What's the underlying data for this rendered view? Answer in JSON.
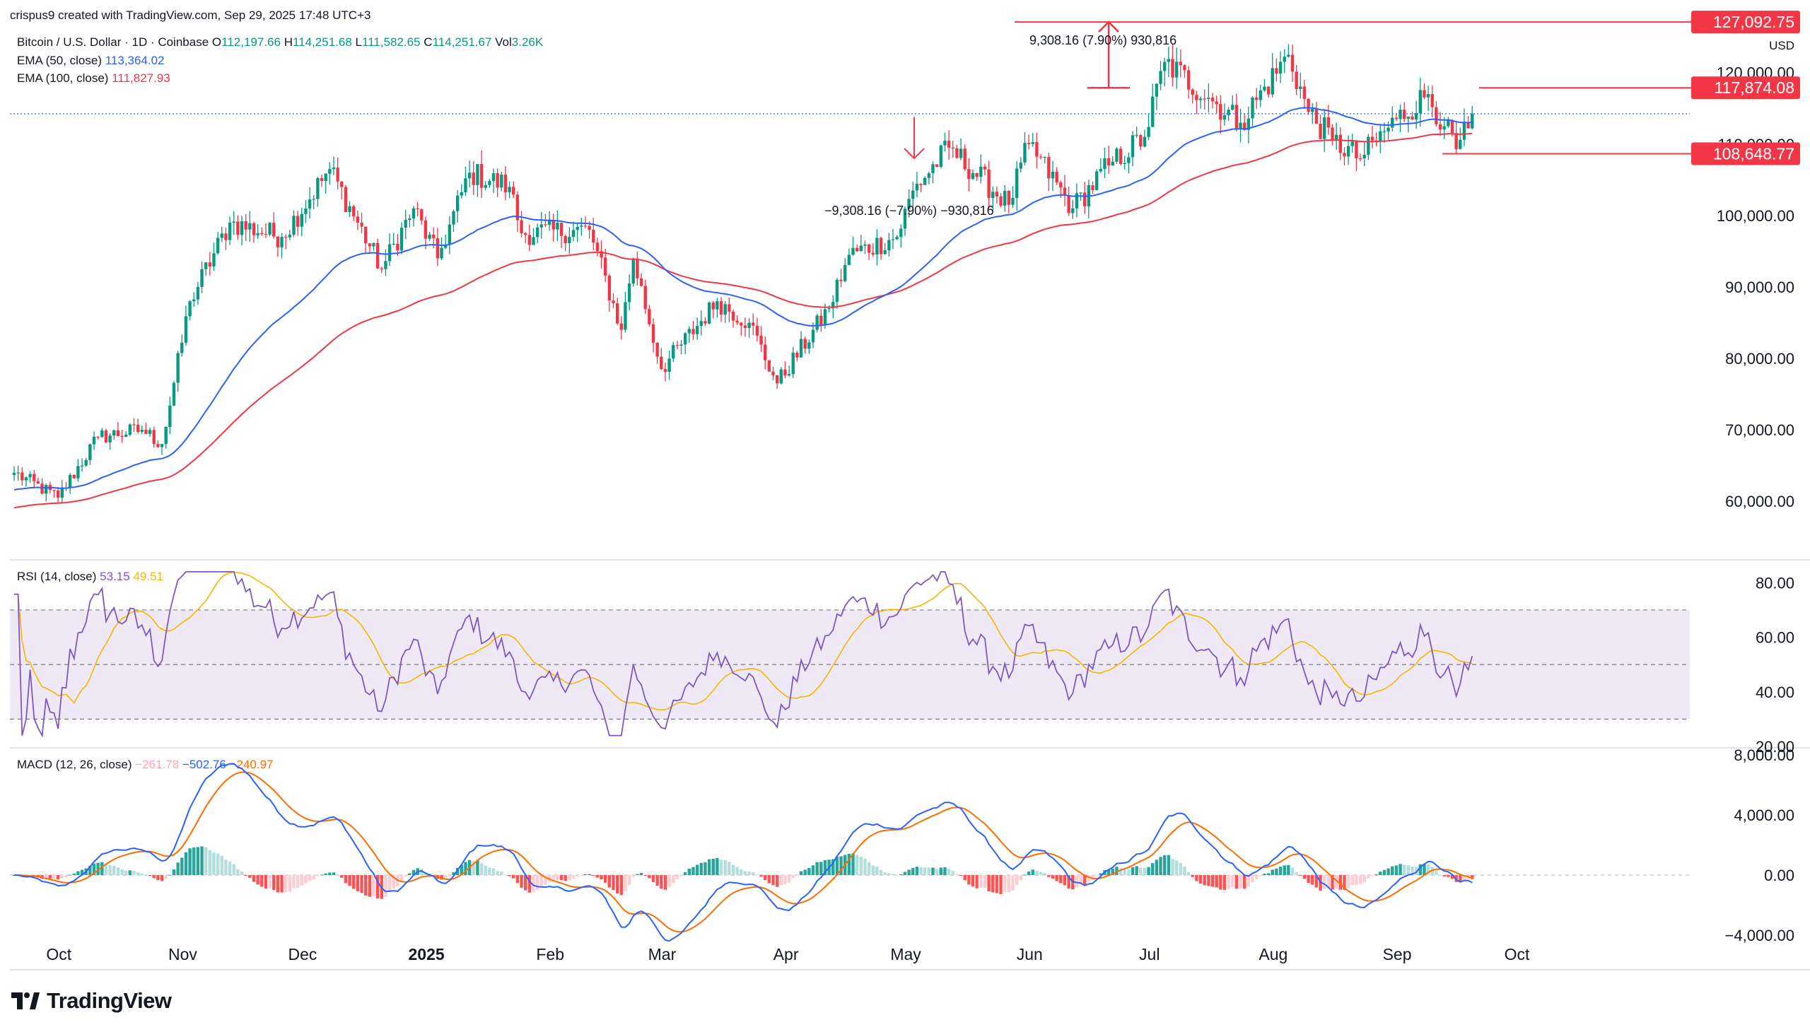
{
  "header": {
    "credit": "crispus9 created with TradingView.com, Sep 29, 2025 17:48 UTC+3",
    "symbol": "Bitcoin / U.S. Dollar · 1D · Coinbase",
    "o_label": "O",
    "o_value": "112,197.66",
    "h_label": "H",
    "h_value": "114,251.68",
    "l_label": "L",
    "l_value": "111,582.65",
    "c_label": "C",
    "c_value": "114,251.67",
    "vol_label": "Vol",
    "vol_value": "3.26K",
    "ema50_label": "EMA (50, close)",
    "ema50_value": "113,364.02",
    "ema100_label": "EMA (100, close)",
    "ema100_value": "111,827.93",
    "rsi_label": "RSI (14, close)",
    "rsi_value": "53.15",
    "rsi_ma_value": "49.51",
    "macd_label": "MACD (12, 26, close)",
    "macd_hist": "−261.78",
    "macd_value": "−502.76",
    "macd_signal": "−240.97"
  },
  "currency": "USD",
  "logo": "TradingView",
  "colors": {
    "up": "#089981",
    "down": "#f23645",
    "ema50": "#2962ff",
    "ema100": "#f23645",
    "rsi": "#7e57c2",
    "rsi_ma": "#f7b500",
    "macd": "#2962ff",
    "signal": "#ff6d00",
    "band": "#ede7f6"
  },
  "chart_data": [
    {
      "type": "candlestick",
      "title": "Bitcoin / U.S. Dollar · 1D · Coinbase",
      "x_ticks": [
        "Oct",
        "Nov",
        "Dec",
        "2025",
        "Feb",
        "Mar",
        "Apr",
        "May",
        "Jun",
        "Jul",
        "Aug",
        "Sep",
        "Oct"
      ],
      "y_ticks": [
        "60,000.00",
        "70,000.00",
        "80,000.00",
        "90,000.00",
        "100,000.00",
        "110,000.00",
        "120,000.00"
      ],
      "ylim": [
        52000,
        127000
      ],
      "price_labels": [
        "127,092.75",
        "117,874.08",
        "108,648.77"
      ],
      "levels": [
        127092.75,
        117874.08,
        108648.77
      ],
      "current_price": 114251.67,
      "annotations": {
        "upper_measure": "9,308.16 (7.90%) 930,816",
        "lower_measure": "−9,308.16 (−7.90%) −930,816"
      },
      "anchors": [
        [
          "2024-09-29",
          64000
        ],
        [
          "2024-10-10",
          60500
        ],
        [
          "2024-10-20",
          69000
        ],
        [
          "2024-10-31",
          70000
        ],
        [
          "2024-11-05",
          68000
        ],
        [
          "2024-11-12",
          88000
        ],
        [
          "2024-11-22",
          99000
        ],
        [
          "2024-12-05",
          97000
        ],
        [
          "2024-12-17",
          106500
        ],
        [
          "2024-12-30",
          92500
        ],
        [
          "2025-01-07",
          101000
        ],
        [
          "2025-01-13",
          94000
        ],
        [
          "2025-01-21",
          106000
        ],
        [
          "2025-01-31",
          104000
        ],
        [
          "2025-02-03",
          97500
        ],
        [
          "2025-02-20",
          98000
        ],
        [
          "2025-02-28",
          84000
        ],
        [
          "2025-03-03",
          94000
        ],
        [
          "2025-03-10",
          78500
        ],
        [
          "2025-03-24",
          88000
        ],
        [
          "2025-04-01",
          85000
        ],
        [
          "2025-04-08",
          76500
        ],
        [
          "2025-04-21",
          87000
        ],
        [
          "2025-04-26",
          94500
        ],
        [
          "2025-05-08",
          97000
        ],
        [
          "2025-05-12",
          103500
        ],
        [
          "2025-05-21",
          109500
        ],
        [
          "2025-06-05",
          101500
        ],
        [
          "2025-06-10",
          110000
        ],
        [
          "2025-06-21",
          101000
        ],
        [
          "2025-06-30",
          107000
        ],
        [
          "2025-07-09",
          111000
        ],
        [
          "2025-07-14",
          121500
        ],
        [
          "2025-07-25",
          116500
        ],
        [
          "2025-08-02",
          113000
        ],
        [
          "2025-08-14",
          122500
        ],
        [
          "2025-08-19",
          114500
        ],
        [
          "2025-08-25",
          110500
        ],
        [
          "2025-09-01",
          108000
        ],
        [
          "2025-09-10",
          113500
        ],
        [
          "2025-09-18",
          117000
        ],
        [
          "2025-09-22",
          112500
        ],
        [
          "2025-09-25",
          109300
        ],
        [
          "2025-09-28",
          112200
        ],
        [
          "2025-09-29",
          114251.67
        ]
      ]
    },
    {
      "type": "line",
      "title": "RSI (14, close)",
      "y_ticks": [
        "20.00",
        "40.00",
        "60.00",
        "80.00"
      ],
      "ylim": [
        20,
        85
      ],
      "band": [
        30,
        70
      ],
      "midline": 50,
      "last_rsi": 53.15,
      "last_ma": 49.51
    },
    {
      "type": "bar",
      "title": "MACD (12, 26, close)",
      "y_ticks": [
        "−4,000.00",
        "0.00",
        "4,000.00",
        "8,000.00"
      ],
      "ylim": [
        -4800,
        8000
      ],
      "last_macd": -502.76,
      "last_signal": -240.97,
      "last_hist": -261.78
    }
  ]
}
